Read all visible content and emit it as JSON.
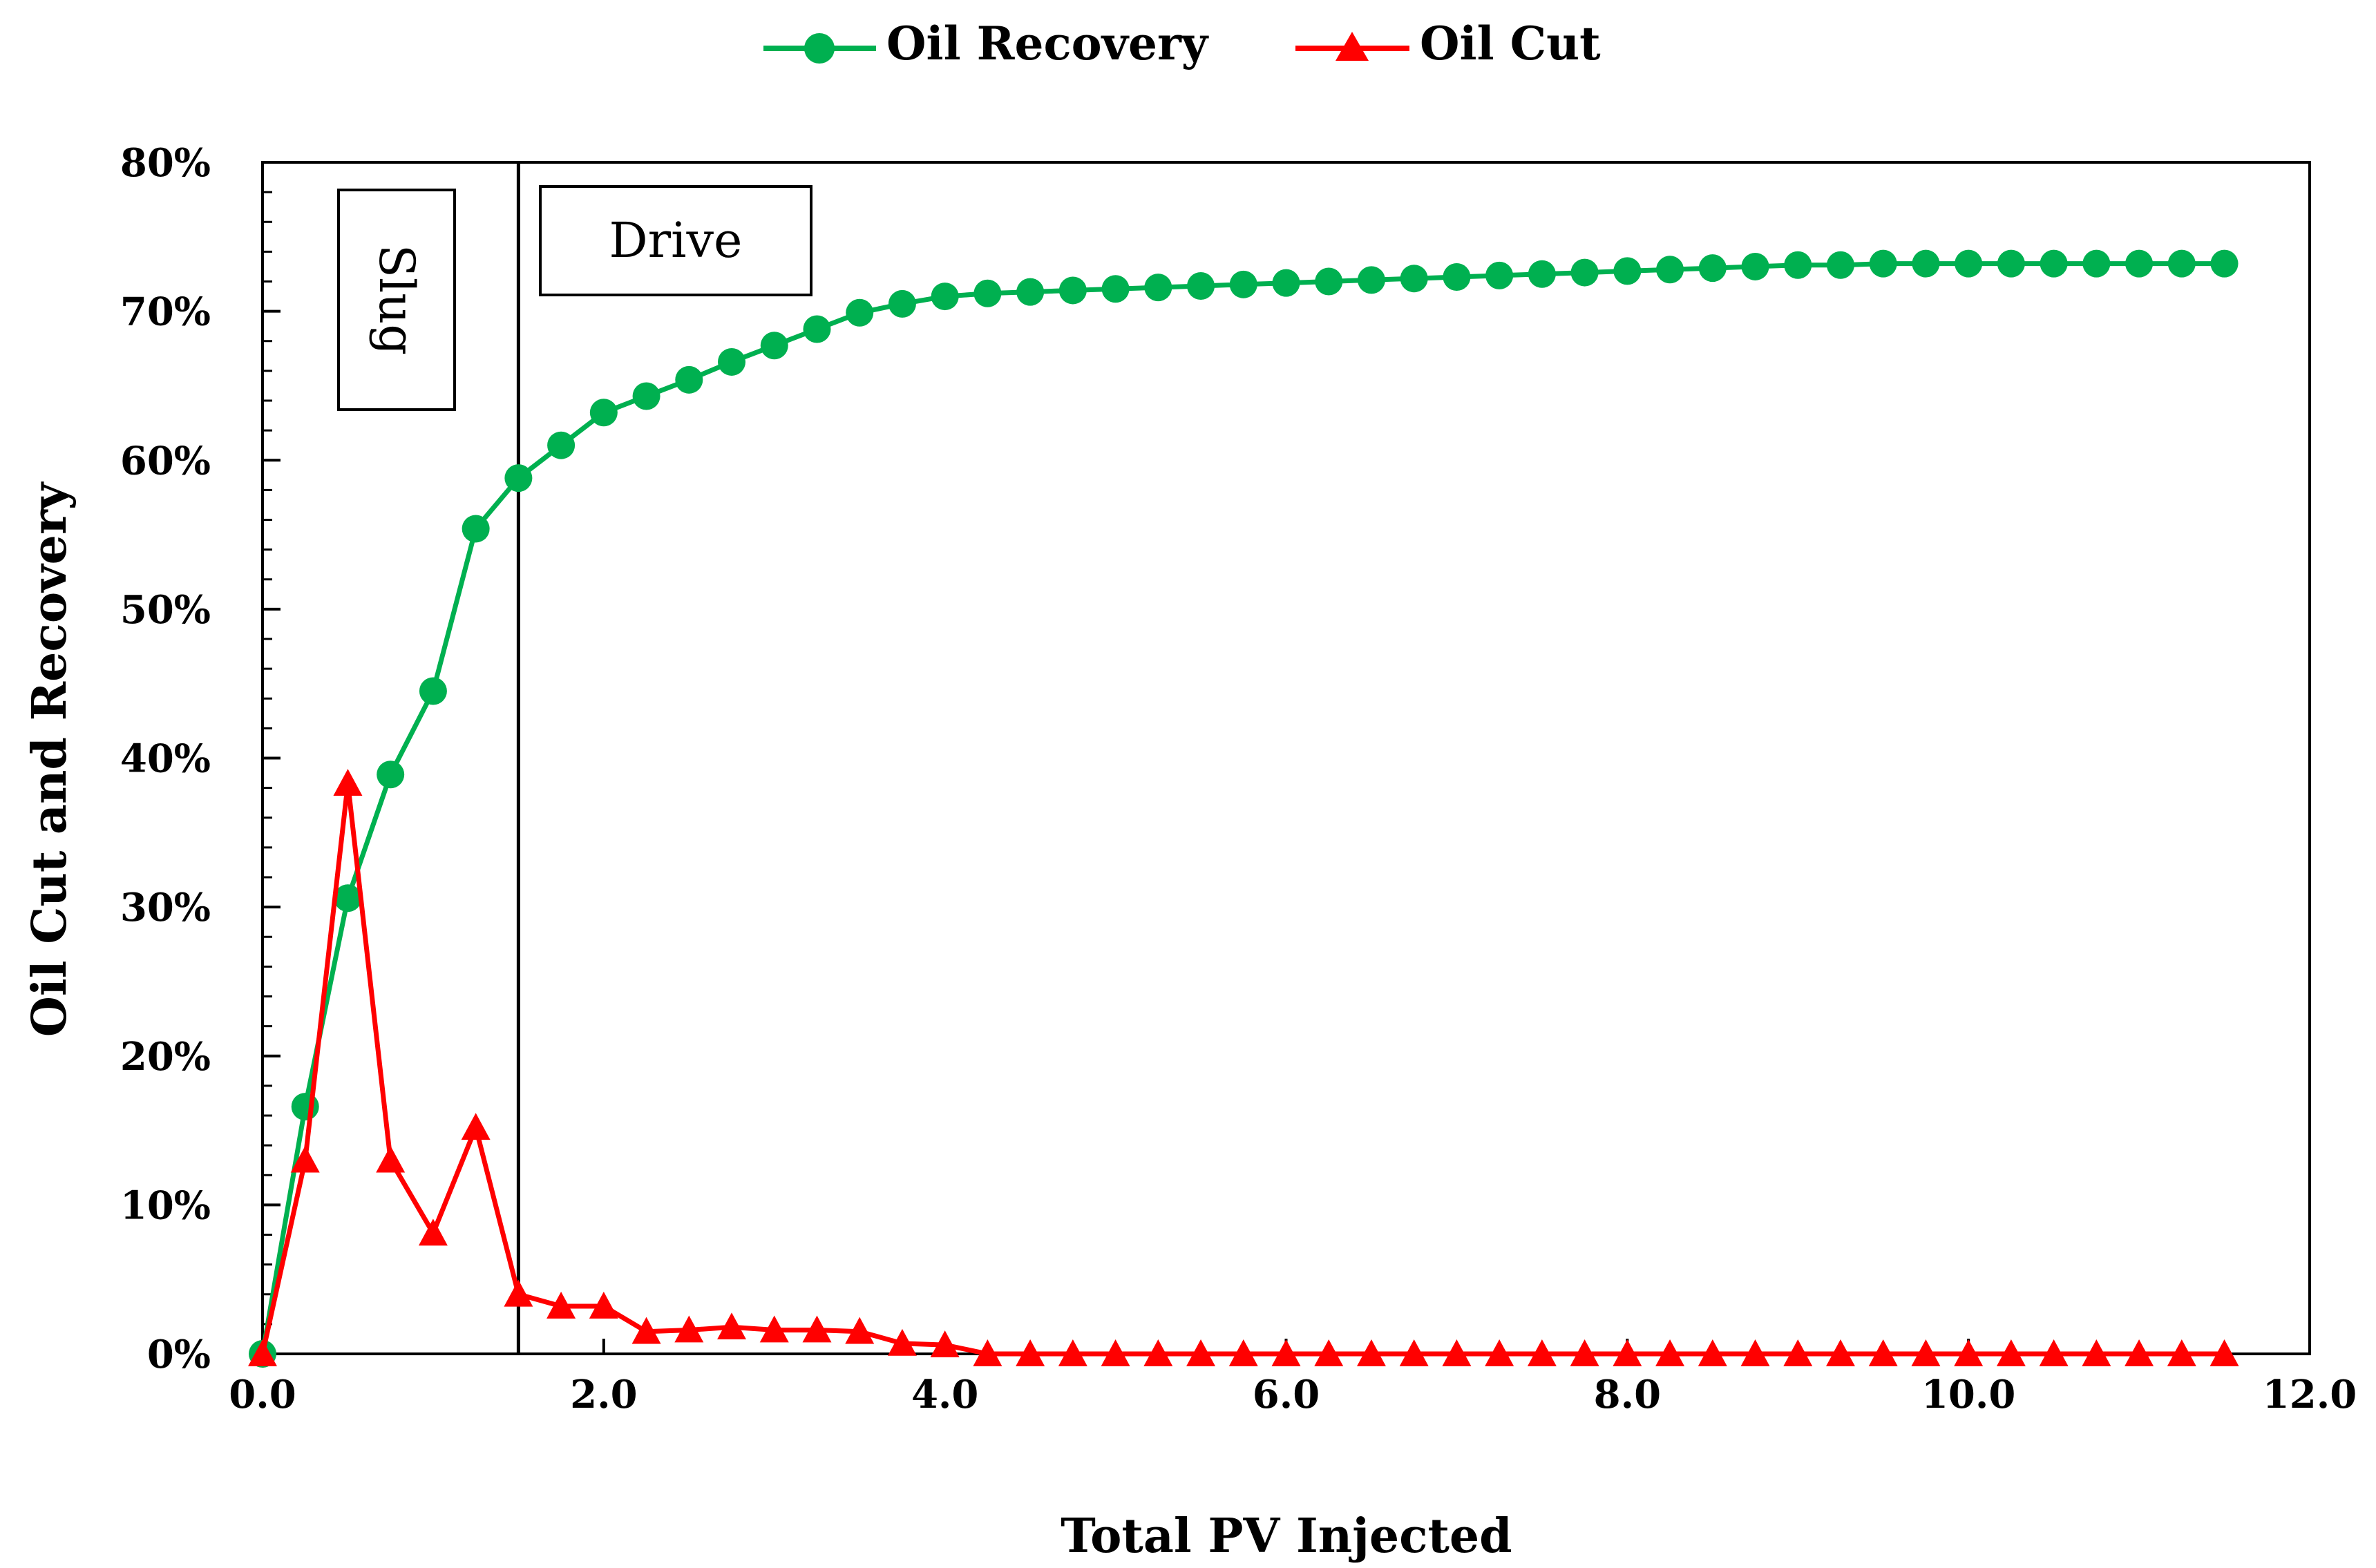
{
  "chart_data": {
    "type": "line",
    "title": "",
    "xlabel": "Total PV Injected",
    "ylabel": "Oil Cut and Recovery",
    "xlim": [
      0,
      12
    ],
    "ylim": [
      0,
      80
    ],
    "xticks": [
      0,
      2,
      4,
      6,
      8,
      10,
      12
    ],
    "xtick_labels": [
      "0.0",
      "2.0",
      "4.0",
      "6.0",
      "8.0",
      "10.0",
      "12.0"
    ],
    "yticks": [
      0,
      10,
      20,
      30,
      40,
      50,
      60,
      70,
      80
    ],
    "ytick_labels": [
      "0%",
      "10%",
      "20%",
      "30%",
      "40%",
      "50%",
      "60%",
      "70%",
      "80%"
    ],
    "legend_position": "top-center",
    "series": [
      {
        "name": "Oil Recovery",
        "color": "#00b050",
        "marker": "circle",
        "x": [
          0,
          0.25,
          0.5,
          0.75,
          1.0,
          1.25,
          1.5,
          1.75,
          2.0,
          2.25,
          2.5,
          2.75,
          3.0,
          3.25,
          3.5,
          3.75,
          4.0,
          4.25,
          4.5,
          4.75,
          5.0,
          5.25,
          5.5,
          5.75,
          6.0,
          6.25,
          6.5,
          6.75,
          7.0,
          7.25,
          7.5,
          7.75,
          8.0,
          8.25,
          8.5,
          8.75,
          9.0,
          9.25,
          9.5,
          9.75,
          10.0,
          10.25,
          10.5,
          10.75,
          11.0,
          11.25,
          11.5
        ],
        "values": [
          0,
          16.6,
          30.6,
          38.9,
          44.5,
          55.4,
          58.8,
          61.0,
          63.2,
          64.3,
          65.4,
          66.6,
          67.7,
          68.8,
          69.9,
          70.5,
          71.0,
          71.2,
          71.3,
          71.4,
          71.5,
          71.6,
          71.7,
          71.8,
          71.9,
          72.0,
          72.1,
          72.2,
          72.3,
          72.4,
          72.5,
          72.6,
          72.7,
          72.8,
          72.9,
          73.0,
          73.1,
          73.1,
          73.2,
          73.2,
          73.2,
          73.2,
          73.2,
          73.2,
          73.2,
          73.2,
          73.2
        ]
      },
      {
        "name": "Oil Cut",
        "color": "#ff0000",
        "marker": "triangle",
        "x": [
          0,
          0.25,
          0.5,
          0.75,
          1.0,
          1.25,
          1.5,
          1.75,
          2.0,
          2.25,
          2.5,
          2.75,
          3.0,
          3.25,
          3.5,
          3.75,
          4.0,
          4.25,
          4.5,
          4.75,
          5.0,
          5.25,
          5.5,
          5.75,
          6.0,
          6.25,
          6.5,
          6.75,
          7.0,
          7.25,
          7.5,
          7.75,
          8.0,
          8.25,
          8.5,
          8.75,
          9.0,
          9.25,
          9.5,
          9.75,
          10.0,
          10.25,
          10.5,
          10.75,
          11.0,
          11.25,
          11.5
        ],
        "values": [
          0,
          13.0,
          38.3,
          13.0,
          8.1,
          15.2,
          4.0,
          3.2,
          3.2,
          1.5,
          1.6,
          1.8,
          1.6,
          1.6,
          1.5,
          0.7,
          0.6,
          0,
          0,
          0,
          0,
          0,
          0,
          0,
          0,
          0,
          0,
          0,
          0,
          0,
          0,
          0,
          0,
          0,
          0,
          0,
          0,
          0,
          0,
          0,
          0,
          0,
          0,
          0,
          0,
          0,
          0
        ]
      }
    ],
    "annotations": [
      {
        "text": "Slug",
        "orientation": "rotated-90-clockwise"
      },
      {
        "text": "Drive"
      }
    ],
    "divider_x": 1.5
  }
}
